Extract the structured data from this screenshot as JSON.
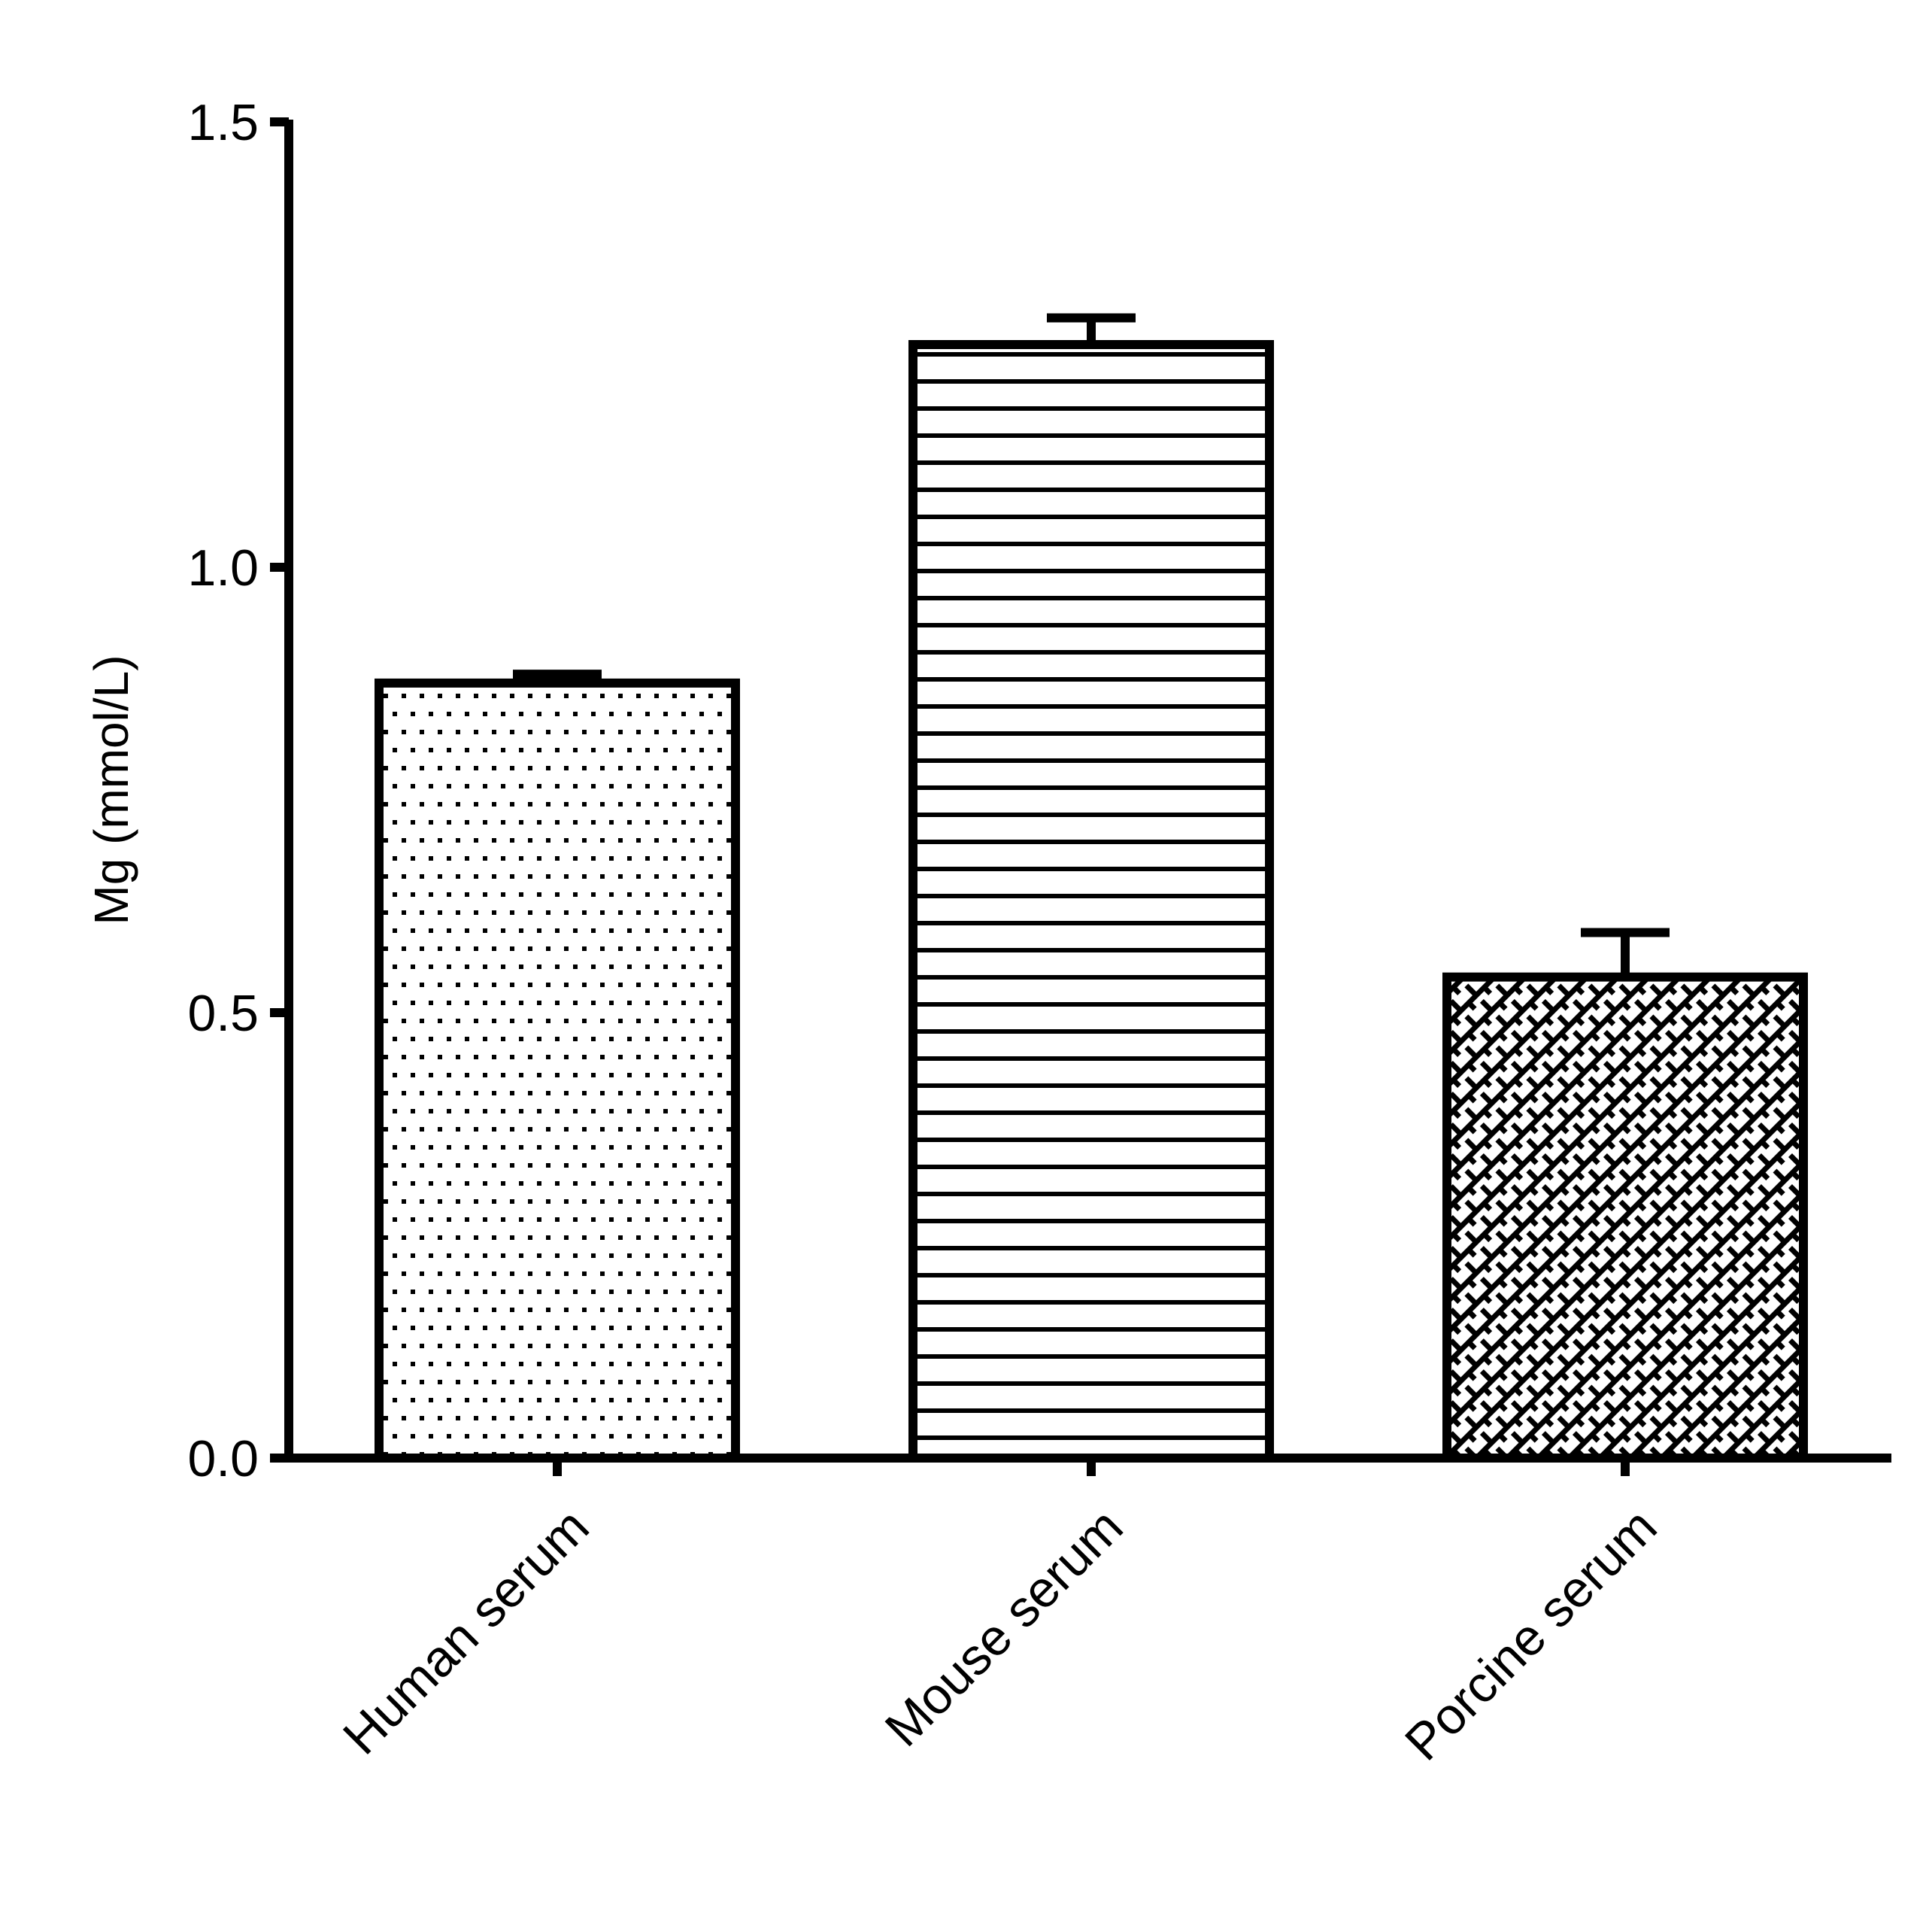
{
  "chart_data": {
    "type": "bar",
    "title": "",
    "xlabel": "",
    "ylabel": "Mg (mmol/L)",
    "ylim": [
      0,
      1.5
    ],
    "yticks": [
      0.0,
      0.5,
      1.0,
      1.5
    ],
    "ytick_labels": [
      "0.0",
      "0.5",
      "1.0",
      "1.5"
    ],
    "grid": false,
    "legend": null,
    "categories": [
      "Human serum",
      "Mouse serum",
      "Porcine serum"
    ],
    "values": [
      0.87,
      1.25,
      0.54
    ],
    "error_bars": [
      0.01,
      0.03,
      0.05
    ],
    "error_type": "upper only",
    "bar_patterns": [
      "dots",
      "horizontal-lines",
      "brick-diagonal"
    ],
    "colors": {
      "fill": "#ffffff",
      "stroke": "#000000"
    },
    "xtick_rotation": -45
  }
}
